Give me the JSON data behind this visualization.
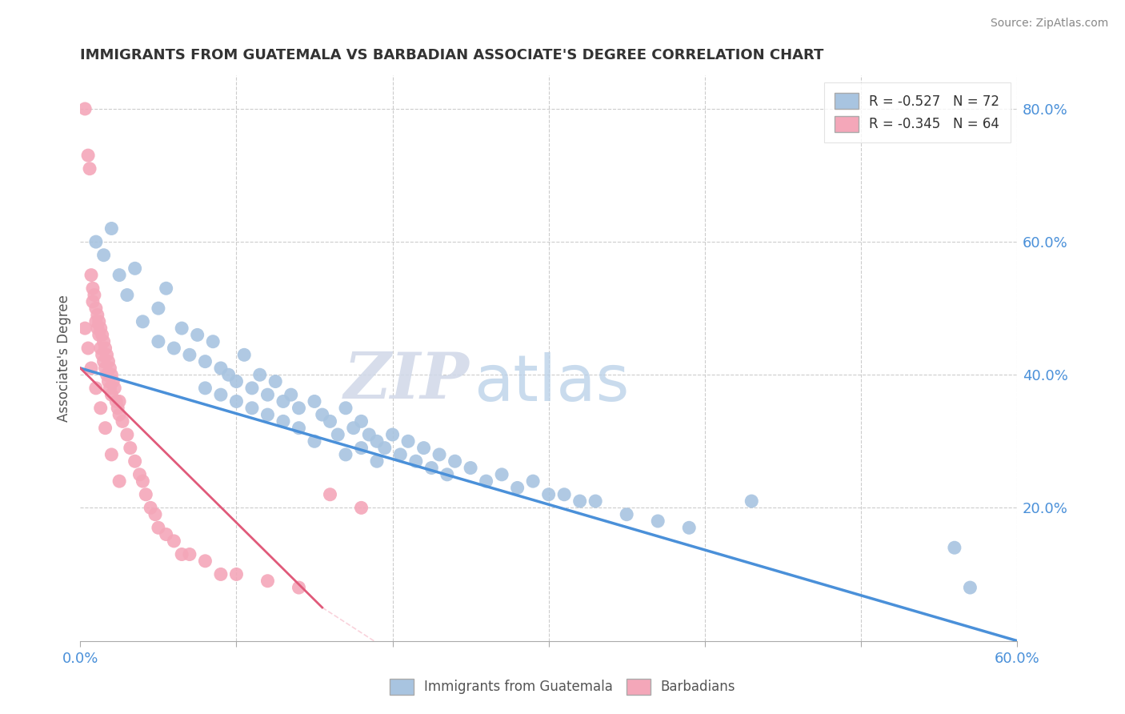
{
  "title": "IMMIGRANTS FROM GUATEMALA VS BARBADIAN ASSOCIATE'S DEGREE CORRELATION CHART",
  "source": "Source: ZipAtlas.com",
  "ylabel": "Associate's Degree",
  "xlim": [
    0.0,
    0.6
  ],
  "ylim": [
    0.0,
    0.85
  ],
  "x_ticks": [
    0.0,
    0.1,
    0.2,
    0.3,
    0.4,
    0.5,
    0.6
  ],
  "y_ticks_right": [
    0.0,
    0.2,
    0.4,
    0.6,
    0.8
  ],
  "y_tick_labels_right": [
    "",
    "20.0%",
    "40.0%",
    "60.0%",
    "80.0%"
  ],
  "legend_R1": "R = -0.527",
  "legend_N1": "N = 72",
  "legend_R2": "R = -0.345",
  "legend_N2": "N = 64",
  "blue_color": "#a8c4e0",
  "pink_color": "#f4a7b9",
  "blue_line_color": "#4a90d9",
  "pink_line_color": "#e05a7a",
  "dashed_line_color": "#f4a7b9",
  "watermark_zip": "ZIP",
  "watermark_atlas": "atlas",
  "blue_line_x": [
    0.0,
    0.6
  ],
  "blue_line_y": [
    0.41,
    0.0
  ],
  "pink_line_x": [
    0.0,
    0.155
  ],
  "pink_line_y": [
    0.41,
    0.05
  ],
  "dashed_line_x": [
    0.155,
    0.32
  ],
  "dashed_line_y": [
    0.05,
    -0.2
  ],
  "blue_scatter_x": [
    0.01,
    0.015,
    0.02,
    0.025,
    0.03,
    0.035,
    0.04,
    0.05,
    0.05,
    0.055,
    0.06,
    0.065,
    0.07,
    0.075,
    0.08,
    0.08,
    0.085,
    0.09,
    0.09,
    0.095,
    0.1,
    0.1,
    0.105,
    0.11,
    0.11,
    0.115,
    0.12,
    0.12,
    0.125,
    0.13,
    0.13,
    0.135,
    0.14,
    0.14,
    0.15,
    0.15,
    0.155,
    0.16,
    0.165,
    0.17,
    0.17,
    0.175,
    0.18,
    0.18,
    0.185,
    0.19,
    0.19,
    0.195,
    0.2,
    0.205,
    0.21,
    0.215,
    0.22,
    0.225,
    0.23,
    0.235,
    0.24,
    0.25,
    0.26,
    0.27,
    0.28,
    0.29,
    0.3,
    0.31,
    0.32,
    0.33,
    0.35,
    0.37,
    0.39,
    0.43,
    0.56,
    0.57
  ],
  "blue_scatter_y": [
    0.6,
    0.58,
    0.62,
    0.55,
    0.52,
    0.56,
    0.48,
    0.5,
    0.45,
    0.53,
    0.44,
    0.47,
    0.43,
    0.46,
    0.42,
    0.38,
    0.45,
    0.41,
    0.37,
    0.4,
    0.39,
    0.36,
    0.43,
    0.38,
    0.35,
    0.4,
    0.37,
    0.34,
    0.39,
    0.36,
    0.33,
    0.37,
    0.35,
    0.32,
    0.36,
    0.3,
    0.34,
    0.33,
    0.31,
    0.35,
    0.28,
    0.32,
    0.33,
    0.29,
    0.31,
    0.3,
    0.27,
    0.29,
    0.31,
    0.28,
    0.3,
    0.27,
    0.29,
    0.26,
    0.28,
    0.25,
    0.27,
    0.26,
    0.24,
    0.25,
    0.23,
    0.24,
    0.22,
    0.22,
    0.21,
    0.21,
    0.19,
    0.18,
    0.17,
    0.21,
    0.14,
    0.08
  ],
  "pink_scatter_x": [
    0.003,
    0.005,
    0.006,
    0.007,
    0.008,
    0.008,
    0.009,
    0.01,
    0.01,
    0.011,
    0.011,
    0.012,
    0.012,
    0.013,
    0.013,
    0.014,
    0.014,
    0.015,
    0.015,
    0.016,
    0.016,
    0.017,
    0.017,
    0.018,
    0.018,
    0.019,
    0.019,
    0.02,
    0.02,
    0.021,
    0.022,
    0.023,
    0.024,
    0.025,
    0.025,
    0.027,
    0.03,
    0.032,
    0.035,
    0.038,
    0.04,
    0.042,
    0.045,
    0.048,
    0.05,
    0.055,
    0.06,
    0.065,
    0.07,
    0.08,
    0.09,
    0.1,
    0.12,
    0.14,
    0.16,
    0.18,
    0.003,
    0.005,
    0.007,
    0.01,
    0.013,
    0.016,
    0.02,
    0.025
  ],
  "pink_scatter_y": [
    0.8,
    0.73,
    0.71,
    0.55,
    0.53,
    0.51,
    0.52,
    0.5,
    0.48,
    0.49,
    0.47,
    0.48,
    0.46,
    0.47,
    0.44,
    0.46,
    0.43,
    0.45,
    0.42,
    0.44,
    0.41,
    0.43,
    0.4,
    0.42,
    0.39,
    0.41,
    0.38,
    0.4,
    0.37,
    0.39,
    0.38,
    0.36,
    0.35,
    0.34,
    0.36,
    0.33,
    0.31,
    0.29,
    0.27,
    0.25,
    0.24,
    0.22,
    0.2,
    0.19,
    0.17,
    0.16,
    0.15,
    0.13,
    0.13,
    0.12,
    0.1,
    0.1,
    0.09,
    0.08,
    0.22,
    0.2,
    0.47,
    0.44,
    0.41,
    0.38,
    0.35,
    0.32,
    0.28,
    0.24
  ]
}
